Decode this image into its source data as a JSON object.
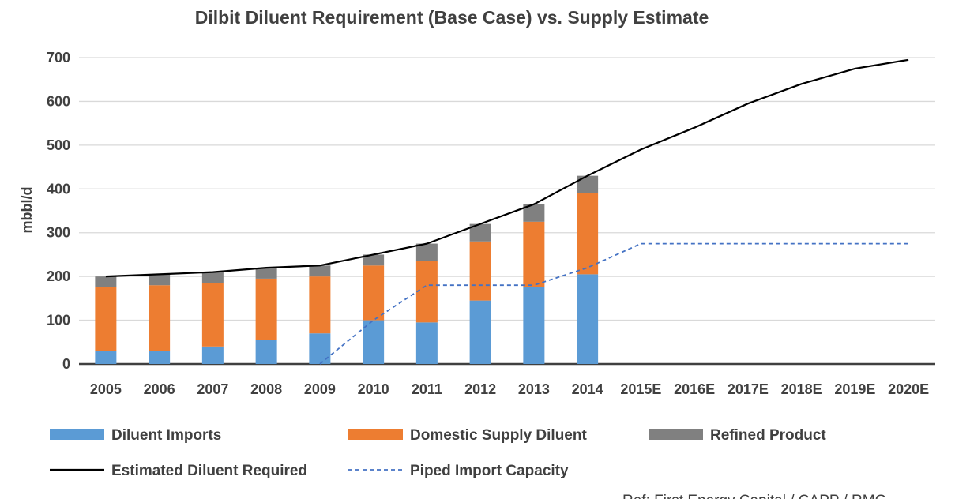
{
  "chart_data": {
    "type": "bar",
    "stacked": true,
    "title": "Dilbit Diluent Requirement (Base Case) vs. Supply Estimate",
    "ylabel": "mbbl/d",
    "xlabel": "",
    "ylim": [
      0,
      700
    ],
    "yticks": [
      0,
      100,
      200,
      300,
      400,
      500,
      600,
      700
    ],
    "grid": true,
    "legend_position": "bottom",
    "categories": [
      "2005",
      "2006",
      "2007",
      "2008",
      "2009",
      "2010",
      "2011",
      "2012",
      "2013",
      "2014",
      "2015E",
      "2016E",
      "2017E",
      "2018E",
      "2019E",
      "2020E"
    ],
    "series": [
      {
        "name": "Diluent Imports",
        "kind": "bar",
        "color": "#5B9BD5",
        "values": [
          30,
          30,
          40,
          55,
          70,
          100,
          95,
          145,
          175,
          205,
          null,
          null,
          null,
          null,
          null,
          null
        ]
      },
      {
        "name": "Domestic Supply Diluent",
        "kind": "bar",
        "color": "#ED7D31",
        "values": [
          145,
          150,
          145,
          140,
          130,
          125,
          140,
          135,
          150,
          185,
          null,
          null,
          null,
          null,
          null,
          null
        ]
      },
      {
        "name": "Refined Product",
        "kind": "bar",
        "color": "#808080",
        "values": [
          25,
          25,
          25,
          25,
          25,
          25,
          40,
          40,
          40,
          40,
          null,
          null,
          null,
          null,
          null,
          null
        ]
      },
      {
        "name": "Estimated Diluent Required",
        "kind": "line",
        "color": "#000000",
        "dash": "solid",
        "values": [
          200,
          205,
          210,
          220,
          225,
          250,
          275,
          320,
          365,
          430,
          490,
          540,
          595,
          640,
          675,
          695
        ]
      },
      {
        "name": "Piped Import Capacity",
        "kind": "line",
        "color": "#4472C4",
        "dash": "dashed",
        "values": [
          null,
          null,
          null,
          null,
          0,
          100,
          180,
          180,
          180,
          220,
          275,
          275,
          275,
          275,
          275,
          275
        ]
      }
    ],
    "source_note": "Ref: First Energy Capital / CAPP / RMG"
  }
}
